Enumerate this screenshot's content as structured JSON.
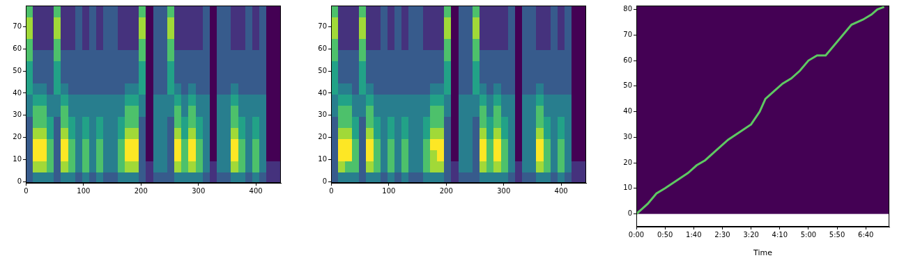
{
  "chart_data": [
    {
      "type": "heatmap",
      "xlim": [
        -0.5,
        443.5
      ],
      "ylim": [
        -0.5,
        79.5
      ],
      "xticks": [
        0,
        100,
        200,
        300,
        400
      ],
      "yticks": [
        0,
        10,
        20,
        30,
        40,
        50,
        60,
        70
      ],
      "cells": [
        [
          3,
          4,
          4,
          4,
          3,
          4,
          4,
          3,
          4,
          3,
          4,
          3,
          3,
          4,
          4,
          4,
          3,
          2,
          3,
          3,
          3,
          4,
          4,
          4,
          4,
          3,
          2,
          3,
          3,
          4,
          4,
          3,
          4,
          3,
          2,
          2
        ],
        [
          3,
          7,
          7,
          6,
          3,
          7,
          6,
          4,
          6,
          4,
          6,
          4,
          4,
          6,
          7,
          7,
          3,
          2,
          4,
          4,
          3,
          7,
          6,
          7,
          6,
          4,
          2,
          4,
          4,
          7,
          6,
          4,
          6,
          4,
          2,
          2
        ],
        [
          3,
          8,
          8,
          6,
          3,
          8,
          6,
          4,
          6,
          4,
          6,
          4,
          4,
          6,
          8,
          8,
          3,
          1,
          4,
          4,
          3,
          8,
          6,
          8,
          6,
          4,
          1,
          4,
          4,
          8,
          6,
          4,
          6,
          4,
          1,
          1
        ],
        [
          3,
          8,
          8,
          6,
          3,
          8,
          6,
          4,
          6,
          4,
          6,
          4,
          4,
          6,
          8,
          8,
          3,
          1,
          4,
          4,
          3,
          8,
          6,
          8,
          6,
          4,
          1,
          4,
          4,
          8,
          6,
          4,
          6,
          4,
          1,
          1
        ],
        [
          3,
          7,
          7,
          5,
          3,
          7,
          5,
          4,
          5,
          4,
          5,
          4,
          4,
          5,
          7,
          7,
          3,
          1,
          4,
          4,
          3,
          7,
          5,
          7,
          5,
          4,
          1,
          4,
          4,
          7,
          5,
          4,
          5,
          4,
          1,
          1
        ],
        [
          3,
          6,
          6,
          5,
          3,
          6,
          5,
          4,
          5,
          4,
          5,
          4,
          4,
          5,
          6,
          6,
          3,
          1,
          4,
          4,
          3,
          6,
          5,
          6,
          5,
          4,
          1,
          4,
          4,
          6,
          5,
          4,
          5,
          4,
          1,
          1
        ],
        [
          4,
          6,
          6,
          4,
          4,
          6,
          4,
          4,
          4,
          4,
          4,
          4,
          4,
          4,
          6,
          6,
          4,
          1,
          4,
          4,
          4,
          6,
          4,
          6,
          4,
          4,
          1,
          4,
          4,
          6,
          4,
          4,
          4,
          4,
          1,
          1
        ],
        [
          4,
          5,
          5,
          4,
          4,
          5,
          4,
          4,
          4,
          4,
          4,
          4,
          4,
          4,
          5,
          5,
          4,
          1,
          4,
          4,
          4,
          5,
          4,
          5,
          4,
          4,
          1,
          4,
          4,
          5,
          4,
          4,
          4,
          4,
          1,
          1
        ],
        [
          5,
          4,
          4,
          3,
          5,
          4,
          3,
          3,
          3,
          3,
          3,
          3,
          3,
          3,
          4,
          4,
          5,
          1,
          3,
          3,
          5,
          4,
          3,
          4,
          3,
          3,
          1,
          3,
          3,
          4,
          3,
          3,
          3,
          3,
          1,
          1
        ],
        [
          5,
          3,
          3,
          3,
          5,
          3,
          3,
          3,
          3,
          3,
          3,
          3,
          3,
          3,
          3,
          3,
          5,
          1,
          3,
          3,
          5,
          3,
          3,
          3,
          3,
          3,
          1,
          3,
          3,
          3,
          3,
          3,
          3,
          3,
          1,
          1
        ],
        [
          5,
          3,
          3,
          3,
          5,
          3,
          3,
          3,
          3,
          3,
          3,
          3,
          3,
          3,
          3,
          3,
          5,
          1,
          3,
          3,
          5,
          3,
          3,
          3,
          3,
          3,
          1,
          3,
          3,
          3,
          3,
          3,
          3,
          3,
          1,
          1
        ],
        [
          6,
          3,
          3,
          3,
          6,
          3,
          3,
          3,
          3,
          3,
          3,
          3,
          3,
          3,
          3,
          3,
          6,
          1,
          3,
          3,
          6,
          3,
          3,
          3,
          3,
          3,
          1,
          3,
          3,
          3,
          3,
          3,
          3,
          3,
          1,
          1
        ],
        [
          6,
          2,
          2,
          2,
          6,
          2,
          2,
          3,
          2,
          3,
          2,
          3,
          3,
          2,
          2,
          2,
          6,
          1,
          3,
          3,
          6,
          2,
          2,
          2,
          2,
          3,
          1,
          3,
          3,
          2,
          2,
          3,
          2,
          3,
          1,
          1
        ],
        [
          7,
          2,
          2,
          2,
          7,
          2,
          2,
          3,
          2,
          3,
          2,
          3,
          3,
          2,
          2,
          2,
          7,
          1,
          3,
          3,
          7,
          2,
          2,
          2,
          2,
          3,
          1,
          3,
          3,
          2,
          2,
          3,
          2,
          3,
          1,
          1
        ],
        [
          7,
          2,
          2,
          2,
          7,
          2,
          2,
          3,
          2,
          3,
          2,
          3,
          3,
          2,
          2,
          2,
          7,
          1,
          3,
          3,
          7,
          2,
          2,
          2,
          2,
          3,
          1,
          3,
          3,
          2,
          2,
          3,
          2,
          3,
          1,
          1
        ],
        [
          6,
          2,
          2,
          2,
          6,
          2,
          2,
          3,
          2,
          3,
          2,
          3,
          3,
          2,
          2,
          2,
          6,
          1,
          3,
          3,
          6,
          2,
          2,
          2,
          2,
          3,
          1,
          3,
          3,
          2,
          2,
          3,
          2,
          3,
          1,
          1
        ]
      ]
    },
    {
      "type": "heatmap",
      "xlim": [
        -0.5,
        443.5
      ],
      "ylim": [
        -0.5,
        79.5
      ],
      "xticks": [
        0,
        100,
        200,
        300,
        400
      ],
      "yticks": [
        0,
        10,
        20,
        30,
        40,
        50,
        60,
        70
      ],
      "cells": [
        [
          3,
          4,
          4,
          4,
          3,
          4,
          4,
          3,
          4,
          3,
          4,
          3,
          3,
          4,
          4,
          4,
          3,
          2,
          3,
          3,
          3,
          4,
          4,
          4,
          4,
          3,
          2,
          3,
          3,
          4,
          4,
          3,
          4,
          3,
          2,
          2
        ],
        [
          3,
          7,
          6,
          6,
          3,
          7,
          6,
          4,
          6,
          4,
          6,
          4,
          4,
          6,
          7,
          7,
          3,
          2,
          4,
          4,
          3,
          7,
          6,
          7,
          6,
          4,
          2,
          4,
          4,
          7,
          6,
          4,
          6,
          4,
          2,
          2
        ],
        [
          3,
          8,
          8,
          6,
          3,
          8,
          6,
          4,
          6,
          4,
          6,
          4,
          4,
          6,
          7,
          8,
          3,
          1,
          4,
          4,
          3,
          8,
          6,
          8,
          6,
          4,
          1,
          4,
          4,
          8,
          6,
          4,
          6,
          4,
          1,
          1
        ],
        [
          3,
          8,
          8,
          6,
          3,
          8,
          6,
          4,
          6,
          4,
          6,
          4,
          4,
          6,
          8,
          8,
          3,
          1,
          4,
          4,
          3,
          8,
          6,
          8,
          6,
          4,
          1,
          4,
          4,
          8,
          6,
          4,
          6,
          4,
          1,
          1
        ],
        [
          3,
          7,
          7,
          5,
          3,
          7,
          5,
          4,
          5,
          4,
          5,
          4,
          4,
          5,
          7,
          7,
          3,
          1,
          4,
          4,
          3,
          7,
          5,
          7,
          5,
          4,
          1,
          4,
          4,
          7,
          5,
          4,
          5,
          4,
          1,
          1
        ],
        [
          3,
          6,
          6,
          5,
          3,
          6,
          5,
          4,
          5,
          4,
          5,
          4,
          4,
          5,
          6,
          6,
          3,
          1,
          4,
          4,
          3,
          6,
          5,
          6,
          5,
          4,
          1,
          4,
          4,
          6,
          5,
          4,
          5,
          4,
          1,
          1
        ],
        [
          4,
          6,
          6,
          4,
          4,
          6,
          4,
          4,
          4,
          4,
          4,
          4,
          4,
          4,
          6,
          6,
          4,
          1,
          4,
          4,
          4,
          6,
          4,
          6,
          4,
          4,
          1,
          4,
          4,
          6,
          4,
          4,
          4,
          4,
          1,
          1
        ],
        [
          4,
          5,
          5,
          4,
          4,
          5,
          4,
          4,
          4,
          4,
          4,
          4,
          4,
          4,
          5,
          5,
          4,
          1,
          4,
          4,
          4,
          5,
          4,
          5,
          4,
          4,
          1,
          4,
          4,
          5,
          4,
          4,
          4,
          4,
          1,
          1
        ],
        [
          5,
          4,
          4,
          3,
          5,
          4,
          3,
          3,
          3,
          3,
          3,
          3,
          3,
          3,
          4,
          4,
          5,
          1,
          3,
          3,
          5,
          4,
          3,
          4,
          3,
          3,
          1,
          3,
          3,
          4,
          3,
          3,
          3,
          3,
          1,
          1
        ],
        [
          5,
          3,
          3,
          3,
          5,
          3,
          3,
          3,
          3,
          3,
          3,
          3,
          3,
          3,
          3,
          3,
          5,
          1,
          3,
          3,
          5,
          3,
          3,
          3,
          3,
          3,
          1,
          3,
          3,
          3,
          3,
          3,
          3,
          3,
          1,
          1
        ],
        [
          5,
          3,
          3,
          3,
          5,
          3,
          3,
          3,
          3,
          3,
          3,
          3,
          3,
          3,
          3,
          3,
          5,
          1,
          3,
          3,
          5,
          3,
          3,
          3,
          3,
          3,
          1,
          3,
          3,
          3,
          3,
          3,
          3,
          3,
          1,
          1
        ],
        [
          6,
          3,
          3,
          3,
          6,
          3,
          3,
          3,
          3,
          3,
          3,
          3,
          3,
          3,
          3,
          3,
          6,
          1,
          3,
          3,
          6,
          3,
          3,
          3,
          3,
          3,
          1,
          3,
          3,
          3,
          3,
          3,
          3,
          3,
          1,
          1
        ],
        [
          6,
          2,
          2,
          2,
          6,
          2,
          2,
          3,
          2,
          3,
          2,
          3,
          3,
          2,
          2,
          2,
          6,
          1,
          3,
          3,
          6,
          2,
          2,
          2,
          2,
          3,
          1,
          3,
          3,
          2,
          2,
          3,
          2,
          3,
          1,
          1
        ],
        [
          7,
          2,
          2,
          2,
          7,
          2,
          2,
          3,
          2,
          3,
          2,
          3,
          3,
          2,
          2,
          2,
          7,
          1,
          3,
          3,
          7,
          2,
          2,
          2,
          2,
          3,
          1,
          3,
          3,
          2,
          2,
          3,
          2,
          3,
          1,
          1
        ],
        [
          7,
          2,
          2,
          2,
          7,
          2,
          2,
          3,
          2,
          3,
          2,
          3,
          3,
          2,
          2,
          2,
          7,
          1,
          3,
          3,
          7,
          2,
          2,
          2,
          2,
          3,
          1,
          3,
          3,
          2,
          2,
          3,
          2,
          3,
          1,
          1
        ],
        [
          6,
          2,
          2,
          2,
          6,
          2,
          2,
          3,
          2,
          3,
          2,
          3,
          3,
          2,
          2,
          2,
          6,
          1,
          3,
          3,
          6,
          2,
          2,
          2,
          2,
          3,
          1,
          3,
          3,
          2,
          2,
          3,
          2,
          3,
          1,
          1
        ]
      ]
    },
    {
      "type": "line",
      "xlabel": "Time",
      "color": "#5ec962",
      "x": [
        0,
        10,
        20,
        35,
        50,
        70,
        90,
        105,
        120,
        140,
        160,
        180,
        200,
        215,
        225,
        240,
        255,
        270,
        285,
        300,
        315,
        330,
        345,
        360,
        375,
        395,
        410,
        420,
        432
      ],
      "values": [
        0,
        2,
        4,
        8,
        10,
        13,
        16,
        19,
        21,
        25,
        29,
        32,
        35,
        40,
        45,
        48,
        51,
        53,
        56,
        60,
        62,
        62,
        66,
        70,
        74,
        76,
        78,
        80,
        81
      ],
      "xlim": [
        0,
        441
      ],
      "ylim": [
        -5,
        81.5
      ],
      "xticks": [
        {
          "value": 0,
          "label": "0:00"
        },
        {
          "value": 50,
          "label": "0:50"
        },
        {
          "value": 100,
          "label": "1:40"
        },
        {
          "value": 150,
          "label": "2:30"
        },
        {
          "value": 200,
          "label": "3:20"
        },
        {
          "value": 250,
          "label": "4:10"
        },
        {
          "value": 300,
          "label": "5:00"
        },
        {
          "value": 350,
          "label": "5:50"
        },
        {
          "value": 400,
          "label": "6:40"
        }
      ],
      "yticks": [
        0,
        10,
        20,
        30,
        40,
        50,
        60,
        70,
        80
      ]
    }
  ]
}
